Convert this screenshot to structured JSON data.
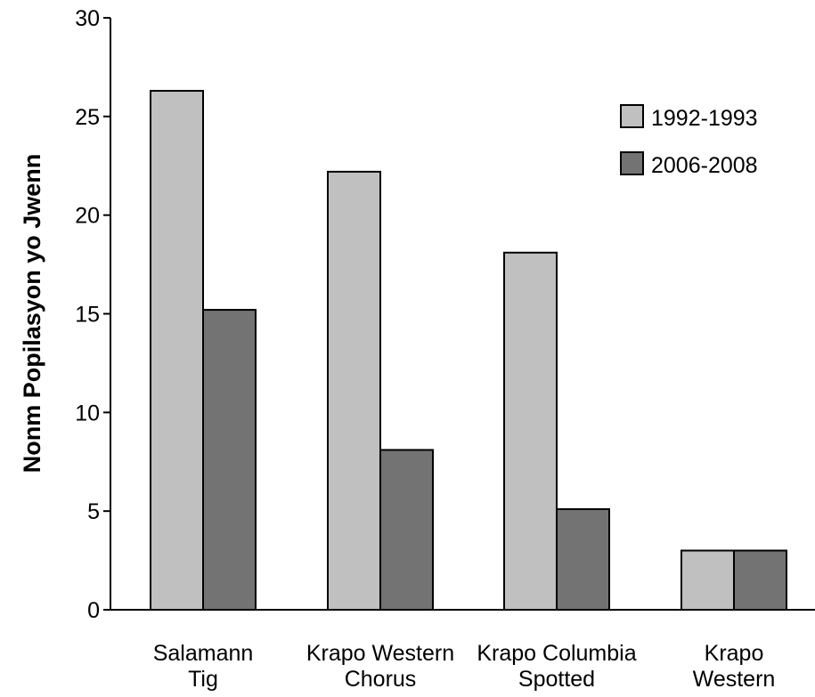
{
  "chart_data": {
    "type": "bar",
    "title": "",
    "ylabel": "Nonm Popilasyon yo Jwenn",
    "xlabel": "",
    "ylim": [
      0,
      30
    ],
    "yticks": [
      0,
      5,
      10,
      15,
      20,
      25,
      30
    ],
    "grid": false,
    "legend_position": "top-right",
    "categories": [
      [
        "Salamann",
        "Tig"
      ],
      [
        "Krapo Western",
        "Chorus"
      ],
      [
        "Krapo Columbia",
        "Spotted"
      ],
      [
        "Krapo",
        "Western"
      ]
    ],
    "series": [
      {
        "name": "1992-1993",
        "color": "#c0c0c0",
        "values": [
          26.3,
          22.2,
          18.1,
          3.0
        ]
      },
      {
        "name": "2006-2008",
        "color": "#737373",
        "values": [
          15.2,
          8.1,
          5.1,
          3.0
        ]
      }
    ]
  }
}
